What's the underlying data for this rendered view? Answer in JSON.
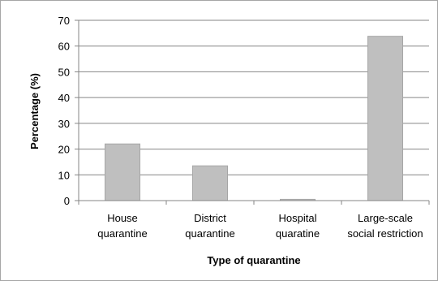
{
  "chart_data": {
    "type": "bar",
    "title": "",
    "categories": [
      [
        "House",
        "quarantine"
      ],
      [
        "District",
        "quarantine"
      ],
      [
        "Hospital",
        "quaratine"
      ],
      [
        "Large-scale",
        "social restriction"
      ]
    ],
    "values": [
      22,
      13.5,
      0.5,
      63.8
    ],
    "xlabel": "Type of quarantine",
    "ylabel": "Percentage (%)",
    "ylim": [
      0,
      70
    ],
    "yticks": [
      0,
      10,
      20,
      30,
      40,
      50,
      60,
      70
    ],
    "grid": true,
    "legend": "none",
    "colors": {
      "bar_fill": "#bfbfbf",
      "bar_stroke": "#a6a6a6",
      "grid": "#868686",
      "axis": "#868686"
    }
  }
}
